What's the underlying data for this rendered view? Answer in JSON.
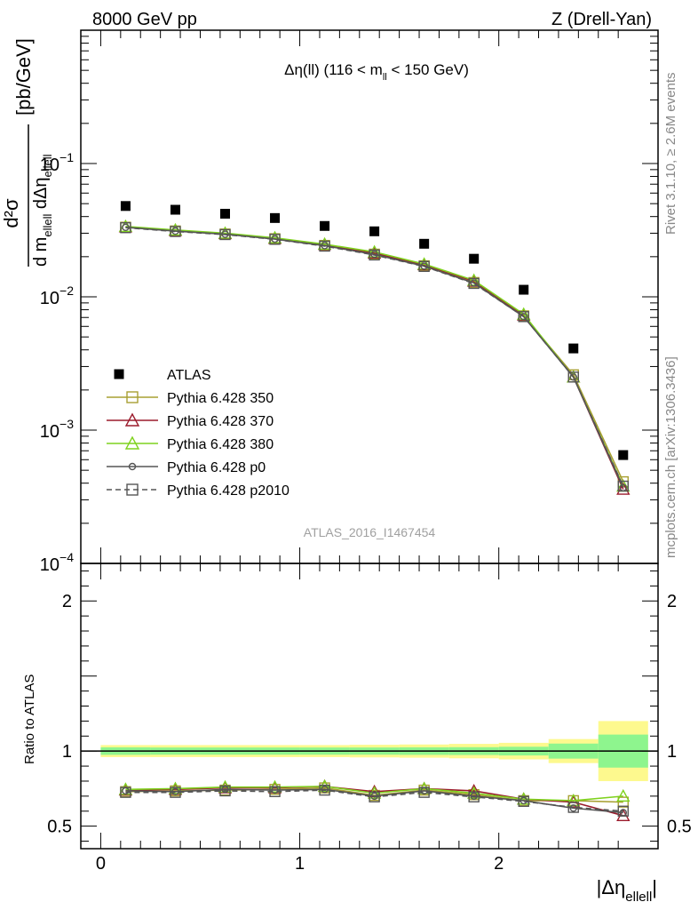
{
  "header": {
    "left": "8000 GeV pp",
    "right": "Z (Drell-Yan)"
  },
  "side": {
    "rivet": "Rivet 3.1.10, ≥ 2.6M events",
    "mcplots": "mcplots.cern.ch [arXiv:1306.3436]"
  },
  "colors": {
    "data": "#000000",
    "p350": "#a8a032",
    "p370": "#9b1b2c",
    "p380": "#7fd21e",
    "p0": "#555555",
    "p2010": "#555555",
    "band_inner": "#8ef58e",
    "band_outer": "#fdf98e"
  },
  "chart_data": {
    "type": "line",
    "title": {
      "main": "Δη(ll) (116 < m",
      "sub": "ll",
      "tail": " < 150 GeV)"
    },
    "watermark": "ATLAS_2016_I1467454",
    "ylabel": {
      "numerator": "d²σ",
      "denominator": "d m",
      "denominator_sub": "ellell",
      "denominator_mid": " dΔη",
      "denominator_sub2": "ellell",
      "unit": "[pb/GeV]"
    },
    "ratio_ylabel": "Ratio to ATLAS",
    "xlabel": {
      "main": "|Δη",
      "sub": "ellell",
      "tail": "|"
    },
    "xlim": [
      -0.1,
      2.8
    ],
    "ylim": [
      0.0001,
      1.0
    ],
    "ylog": true,
    "ratio_ylim": [
      0.35,
      2.25
    ],
    "x_ticks": [
      "0",
      "1",
      "2"
    ],
    "y_ticks": [
      {
        "base": "10",
        "exp": "−1"
      },
      {
        "base": "10",
        "exp": "−2"
      },
      {
        "base": "10",
        "exp": "−3"
      },
      {
        "base": "10",
        "exp": "−4"
      }
    ],
    "ratio_ticks": [
      "0.5",
      "1",
      "2"
    ],
    "x": [
      0.125,
      0.375,
      0.625,
      0.875,
      1.125,
      1.375,
      1.625,
      1.875,
      2.125,
      2.375,
      2.625
    ],
    "x_edges": [
      0.0,
      0.25,
      0.5,
      0.75,
      1.0,
      1.25,
      1.5,
      1.75,
      2.0,
      2.25,
      2.5,
      2.75
    ],
    "data": {
      "name": "ATLAS",
      "values": [
        0.048,
        0.045,
        0.042,
        0.039,
        0.034,
        0.031,
        0.025,
        0.0193,
        0.0113,
        0.0041,
        0.00065
      ]
    },
    "band_inner": [
      0.025,
      0.024,
      0.024,
      0.024,
      0.024,
      0.024,
      0.025,
      0.026,
      0.029,
      0.05,
      0.11
    ],
    "band_outer": [
      0.04,
      0.04,
      0.04,
      0.04,
      0.04,
      0.042,
      0.044,
      0.048,
      0.055,
      0.08,
      0.2
    ],
    "series": [
      {
        "name": "Pythia 6.428 350",
        "color_key": "p350",
        "marker": "square",
        "dash": false,
        "values": [
          0.0333,
          0.0312,
          0.0296,
          0.0273,
          0.0243,
          0.0209,
          0.0171,
          0.0128,
          0.0072,
          0.0026,
          0.00041
        ],
        "ratio": [
          0.73,
          0.735,
          0.74,
          0.745,
          0.755,
          0.705,
          0.74,
          0.71,
          0.67,
          0.67,
          0.66
        ]
      },
      {
        "name": "Pythia 6.428 370",
        "color_key": "p370",
        "marker": "triangle",
        "dash": false,
        "values": [
          0.0335,
          0.0315,
          0.0298,
          0.0274,
          0.0247,
          0.0213,
          0.0174,
          0.0131,
          0.0073,
          0.0025,
          0.00036
        ],
        "ratio": [
          0.74,
          0.745,
          0.755,
          0.755,
          0.765,
          0.73,
          0.75,
          0.735,
          0.68,
          0.66,
          0.57
        ]
      },
      {
        "name": "Pythia 6.428 380",
        "color_key": "p380",
        "marker": "triangle",
        "dash": false,
        "values": [
          0.0337,
          0.0317,
          0.03,
          0.0277,
          0.0248,
          0.0217,
          0.0176,
          0.0133,
          0.0074,
          0.0025,
          0.00038
        ],
        "ratio": [
          0.745,
          0.75,
          0.76,
          0.76,
          0.765,
          0.72,
          0.75,
          0.72,
          0.68,
          0.67,
          0.7
        ]
      },
      {
        "name": "Pythia 6.428 p0",
        "color_key": "p0",
        "marker": "circle",
        "dash": false,
        "values": [
          0.0332,
          0.0311,
          0.0295,
          0.0271,
          0.0242,
          0.0208,
          0.017,
          0.0127,
          0.0071,
          0.0025,
          0.00037
        ],
        "ratio": [
          0.735,
          0.73,
          0.745,
          0.74,
          0.745,
          0.7,
          0.735,
          0.7,
          0.67,
          0.62,
          0.59
        ]
      },
      {
        "name": "Pythia 6.428 p2010",
        "color_key": "p2010",
        "marker": "square",
        "dash": true,
        "values": [
          0.033,
          0.0309,
          0.0293,
          0.027,
          0.024,
          0.0206,
          0.0169,
          0.0126,
          0.0071,
          0.0025,
          0.00038
        ],
        "ratio": [
          0.725,
          0.725,
          0.735,
          0.73,
          0.74,
          0.695,
          0.725,
          0.695,
          0.665,
          0.625,
          0.6
        ]
      }
    ]
  }
}
